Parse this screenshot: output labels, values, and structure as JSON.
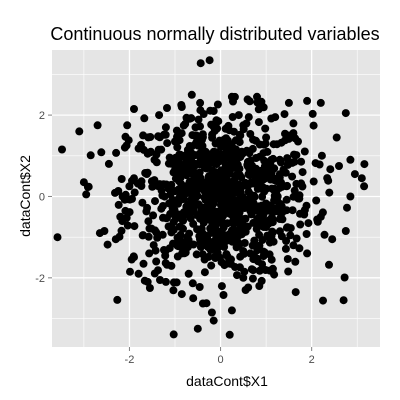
{
  "chart_data": {
    "type": "scatter",
    "title": "Continuous normally distributed variables",
    "xlabel": "dataCont$X1",
    "ylabel": "dataCont$X2",
    "xlim": [
      -3.7,
      3.5
    ],
    "ylim": [
      -3.7,
      3.6
    ],
    "x_ticks": [
      -2,
      0,
      2
    ],
    "y_ticks": [
      -2,
      0,
      2
    ],
    "x_tick_labels": [
      "-2",
      "0",
      "2"
    ],
    "y_tick_labels": [
      "-2",
      "0",
      "2"
    ],
    "grid": true,
    "point_color": "#000000",
    "panel_background": "#e5e5e5",
    "grid_color": "#ffffff",
    "series": [
      {
        "points": [
          [
            -0.24,
            3.35
          ],
          [
            -3.58,
            -1.0
          ],
          [
            -3.1,
            1.6
          ],
          [
            -3.0,
            0.35
          ],
          [
            -2.95,
            0.05
          ],
          [
            -2.7,
            1.75
          ],
          [
            -2.55,
            -0.85
          ],
          [
            -2.3,
            -1.05
          ],
          [
            -2.2,
            -0.5
          ],
          [
            -2.15,
            0.0
          ],
          [
            -2.05,
            1.75
          ],
          [
            -1.9,
            2.15
          ],
          [
            -2.45,
            0.8
          ],
          [
            -2.1,
            1.2
          ],
          [
            -1.95,
            -1.55
          ],
          [
            -1.8,
            -1.9
          ],
          [
            -1.6,
            -2.1
          ],
          [
            -1.55,
            -2.25
          ],
          [
            -1.2,
            -2.1
          ],
          [
            -0.85,
            -2.4
          ],
          [
            -0.6,
            -2.5
          ],
          [
            -0.5,
            -3.25
          ],
          [
            -0.15,
            -3.05
          ],
          [
            0.25,
            -2.8
          ],
          [
            0.2,
            -3.4
          ],
          [
            0.55,
            -2.3
          ],
          [
            0.85,
            -2.2
          ],
          [
            1.65,
            -2.35
          ],
          [
            2.7,
            -2.55
          ],
          [
            1.9,
            -1.4
          ],
          [
            2.45,
            -1.05
          ],
          [
            2.75,
            -0.85
          ],
          [
            2.2,
            -0.5
          ],
          [
            2.85,
            0.0
          ],
          [
            2.95,
            0.55
          ],
          [
            3.1,
            0.45
          ],
          [
            3.15,
            0.25
          ],
          [
            2.6,
            0.75
          ],
          [
            2.85,
            0.9
          ],
          [
            2.55,
            1.45
          ],
          [
            2.75,
            2.05
          ],
          [
            2.2,
            2.3
          ],
          [
            1.9,
            2.35
          ],
          [
            1.5,
            2.3
          ],
          [
            0.8,
            2.45
          ],
          [
            0.25,
            2.45
          ],
          [
            -0.45,
            2.3
          ],
          [
            -0.85,
            2.2
          ],
          [
            -1.35,
            2.0
          ],
          [
            -1.7,
            1.5
          ],
          [
            -1.45,
            0.9
          ],
          [
            -1.25,
            0.3
          ],
          [
            -1.3,
            -0.3
          ],
          [
            -1.05,
            -0.8
          ],
          [
            -0.75,
            -1.25
          ],
          [
            -0.35,
            -1.55
          ],
          [
            0.15,
            -1.65
          ],
          [
            0.65,
            -1.4
          ],
          [
            1.05,
            -1.0
          ],
          [
            1.35,
            -0.4
          ],
          [
            1.45,
            0.25
          ],
          [
            1.3,
            0.9
          ],
          [
            1.0,
            1.45
          ],
          [
            0.5,
            1.75
          ],
          [
            -0.05,
            1.85
          ],
          [
            -0.55,
            1.7
          ],
          [
            -1.0,
            1.35
          ],
          [
            -0.8,
            0.65
          ],
          [
            -0.6,
            0.1
          ],
          [
            -0.45,
            -0.55
          ],
          [
            -0.1,
            -0.95
          ],
          [
            0.35,
            -0.85
          ],
          [
            0.75,
            -0.35
          ],
          [
            0.85,
            0.3
          ],
          [
            0.6,
            0.85
          ],
          [
            0.1,
            1.05
          ],
          [
            -0.35,
            0.9
          ],
          [
            -0.2,
            0.35
          ],
          [
            0.05,
            -0.2
          ],
          [
            0.3,
            0.15
          ],
          [
            0.45,
            -0.05
          ],
          [
            -0.3,
            -0.1
          ],
          [
            0.1,
            0.45
          ],
          [
            -0.5,
            1.25
          ],
          [
            0.95,
            -0.75
          ],
          [
            -0.9,
            -0.45
          ],
          [
            1.6,
            -1.2
          ],
          [
            -1.7,
            -0.95
          ],
          [
            -1.9,
            0.45
          ],
          [
            1.8,
            0.6
          ],
          [
            1.7,
            1.35
          ],
          [
            -1.6,
            1.05
          ],
          [
            0.4,
            2.0
          ],
          [
            -0.15,
            2.1
          ],
          [
            -0.7,
            -1.9
          ],
          [
            0.5,
            -2.0
          ],
          [
            1.2,
            1.95
          ],
          [
            -1.2,
            1.7
          ],
          [
            2.1,
            -0.1
          ],
          [
            -2.0,
            0.25
          ],
          [
            1.1,
            0.55
          ],
          [
            -1.1,
            0.05
          ]
        ]
      }
    ]
  }
}
